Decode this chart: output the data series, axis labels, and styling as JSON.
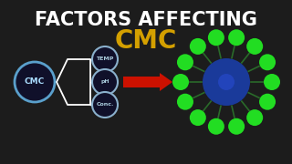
{
  "bg_color": "#1c1c1c",
  "title1": "FACTORS AFFECTING",
  "title2": "CMC",
  "title1_color": "#ffffff",
  "title2_color": "#d4a000",
  "title1_fontsize": 15,
  "title2_fontsize": 20,
  "cmc_label": "CMC",
  "factor_labels": [
    "TEMP",
    "pH",
    "Conc."
  ],
  "arrow_color": "#cc1100",
  "core_color": "#1a3a9a",
  "tail_color": "#2a6a2a",
  "head_color": "#22dd22",
  "micelle_n_outer": 14,
  "micelle_inner_balls": 7
}
